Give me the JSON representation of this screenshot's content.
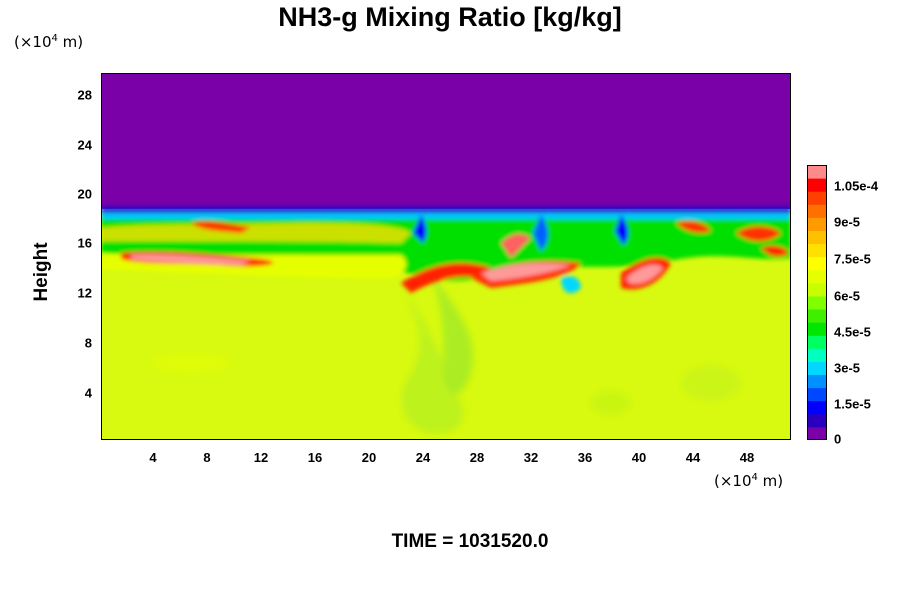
{
  "chart_data": {
    "type": "heatmap",
    "title": "NH3-g Mixing Ratio [kg/kg]",
    "ylabel": "Height",
    "x_unit": {
      "pre": "(×10",
      "exp": "4",
      "post": " m)"
    },
    "y_unit": {
      "pre": "(×10",
      "exp": "4",
      "post": " m)"
    },
    "x_ticks": [
      4,
      8,
      12,
      16,
      20,
      24,
      28,
      32,
      36,
      40,
      44,
      48
    ],
    "y_ticks": [
      4,
      8,
      12,
      16,
      20,
      24,
      28
    ],
    "xlim": [
      0,
      51.5
    ],
    "ylim": [
      0,
      29.5
    ],
    "colorbar": {
      "range": [
        0,
        0.00011
      ],
      "labels": [
        "0",
        "1.5e-5",
        "3e-5",
        "4.5e-5",
        "6e-5",
        "7.5e-5",
        "9e-5",
        "1.05e-4"
      ],
      "label_values": [
        0,
        1.5e-05,
        3e-05,
        4.5e-05,
        6e-05,
        7.5e-05,
        9e-05,
        0.000105
      ],
      "colors": [
        "#7a00a8",
        "#2a00c0",
        "#0000ff",
        "#0048ff",
        "#0090ff",
        "#00d8ff",
        "#00ffc0",
        "#00ff60",
        "#00e600",
        "#40ee00",
        "#80ff00",
        "#c8ff00",
        "#e6ff00",
        "#ffff00",
        "#ffe000",
        "#ffc000",
        "#ff9a00",
        "#ff7000",
        "#ff4000",
        "#ff0000",
        "#ff8a8a"
      ]
    },
    "regions_description_values": {
      "upper_value": 0,
      "lower_value": 7.7e-05,
      "interface_height": 18.3
    },
    "time_label": "TIME = 1031520.0"
  }
}
